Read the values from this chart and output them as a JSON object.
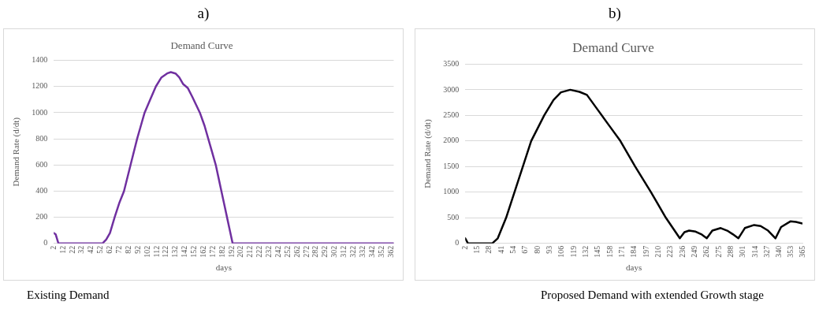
{
  "chart_data": [
    {
      "type": "line",
      "title": "Demand Curve",
      "xlabel": "days",
      "ylabel": "Demand Rate (d/dt)",
      "annotations": [
        "a)",
        "Existing Demand"
      ],
      "x": [
        2,
        4,
        7,
        54,
        58,
        62,
        67,
        72,
        77,
        84,
        91,
        95,
        99,
        105,
        111,
        117,
        123,
        127,
        132,
        136,
        140,
        145,
        150,
        154,
        158,
        163,
        167,
        171,
        175,
        178,
        181,
        184,
        187,
        190,
        193,
        365
      ],
      "series": [
        {
          "color": "#7030a0",
          "values": [
            80,
            70,
            0,
            0,
            30,
            80,
            200,
            310,
            400,
            600,
            800,
            900,
            1000,
            1100,
            1200,
            1270,
            1300,
            1310,
            1300,
            1270,
            1220,
            1190,
            1120,
            1060,
            1000,
            900,
            800,
            700,
            600,
            500,
            400,
            300,
            200,
            100,
            0,
            0
          ]
        }
      ],
      "xlim": [
        2,
        365
      ],
      "xticks": [
        2,
        12,
        22,
        32,
        42,
        52,
        62,
        72,
        82,
        92,
        102,
        112,
        122,
        132,
        142,
        152,
        162,
        172,
        182,
        192,
        202,
        212,
        222,
        232,
        242,
        252,
        262,
        272,
        282,
        292,
        302,
        312,
        322,
        332,
        342,
        352,
        362
      ],
      "ylim": [
        0,
        1400
      ],
      "yticks": [
        0,
        200,
        400,
        600,
        800,
        1000,
        1200,
        1400
      ],
      "grid": "y",
      "legend": false,
      "marker": "none",
      "line_style": "solid"
    },
    {
      "type": "line",
      "title": "Demand Curve",
      "xlabel": "days",
      "ylabel": "Demand Rate (d/dt)",
      "annotations": [
        "b)",
        "Proposed Demand with extended Growth stage"
      ],
      "x": [
        2,
        5,
        31,
        37,
        46,
        55,
        64,
        73,
        87,
        97,
        105,
        115,
        125,
        133,
        145,
        157,
        169,
        185,
        202,
        218,
        233,
        238,
        243,
        250,
        256,
        262,
        268,
        277,
        284,
        290,
        296,
        303,
        313,
        320,
        328,
        336,
        342,
        352,
        358,
        365
      ],
      "series": [
        {
          "color": "#000000",
          "values": [
            100,
            0,
            0,
            100,
            500,
            1000,
            1500,
            2000,
            2500,
            2800,
            2950,
            3000,
            2960,
            2900,
            2600,
            2300,
            2000,
            1500,
            1000,
            500,
            100,
            220,
            250,
            230,
            180,
            100,
            250,
            300,
            250,
            180,
            100,
            300,
            360,
            340,
            250,
            100,
            320,
            430,
            420,
            390
          ]
        }
      ],
      "xlim": [
        2,
        365
      ],
      "xticks": [
        2,
        15,
        28,
        41,
        54,
        67,
        80,
        93,
        106,
        119,
        132,
        145,
        158,
        171,
        184,
        197,
        210,
        223,
        236,
        249,
        262,
        275,
        288,
        301,
        314,
        327,
        340,
        353,
        365
      ],
      "ylim": [
        0,
        3500
      ],
      "yticks": [
        0,
        500,
        1000,
        1500,
        2000,
        2500,
        3000,
        3500
      ],
      "grid": "y",
      "legend": false,
      "marker": "none",
      "line_style": "solid"
    }
  ]
}
